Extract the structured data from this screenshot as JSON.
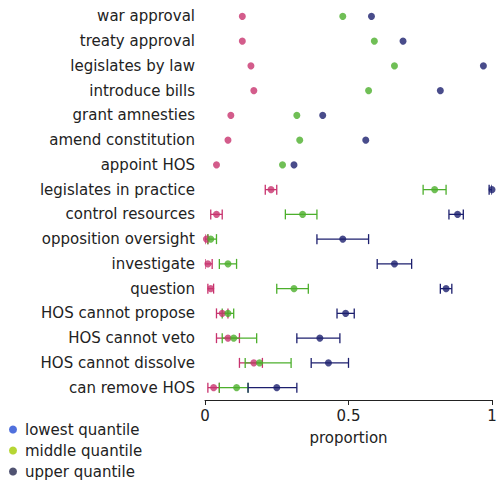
{
  "chart_data": {
    "type": "scatter",
    "orientation": "horizontal",
    "x_label": "proportion",
    "categories": [
      "war approval",
      "treaty approval",
      "legislates by law",
      "introduce bills",
      "grant amnesties",
      "amend constitution",
      "appoint HOS",
      "legislates in practice",
      "control resources",
      "opposition oversight",
      "investigate",
      "question",
      "HOS cannot propose",
      "HOS cannot veto",
      "HOS cannot dissolve",
      "can remove HOS"
    ],
    "xlim": [
      0,
      1
    ],
    "xticks": [
      0,
      0.5,
      1
    ],
    "grid": false,
    "legend": "bottom-left",
    "marker": "circle",
    "series": [
      {
        "name": "lowest quantile",
        "color": "#c8336e",
        "values": [
          0.13,
          0.13,
          0.16,
          0.17,
          0.09,
          0.08,
          0.04,
          0.23,
          0.04,
          0.005,
          0.01,
          0.02,
          0.06,
          0.08,
          0.17,
          0.03
        ],
        "lower": [
          null,
          null,
          null,
          null,
          null,
          null,
          null,
          0.21,
          0.02,
          0.0,
          0.0,
          0.01,
          0.04,
          0.04,
          0.12,
          0.01
        ],
        "upper": [
          null,
          null,
          null,
          null,
          null,
          null,
          null,
          0.25,
          0.06,
          0.01,
          0.025,
          0.03,
          0.08,
          0.12,
          0.2,
          0.05
        ]
      },
      {
        "name": "middle quantile",
        "color": "#4caf2c",
        "values": [
          0.48,
          0.59,
          0.66,
          0.57,
          0.32,
          0.33,
          0.27,
          0.8,
          0.34,
          0.02,
          0.08,
          0.31,
          0.08,
          0.1,
          0.19,
          0.11
        ],
        "lower": [
          null,
          null,
          null,
          null,
          null,
          null,
          null,
          0.76,
          0.28,
          0.01,
          0.05,
          0.25,
          0.06,
          0.06,
          0.14,
          0.05
        ],
        "upper": [
          null,
          null,
          null,
          null,
          null,
          null,
          null,
          0.84,
          0.39,
          0.04,
          0.11,
          0.36,
          0.1,
          0.18,
          0.3,
          0.15
        ]
      },
      {
        "name": "upper quantile",
        "color": "#1c1f6e",
        "values": [
          0.58,
          0.69,
          0.97,
          0.82,
          0.41,
          0.56,
          0.31,
          1.0,
          0.88,
          0.48,
          0.66,
          0.84,
          0.49,
          0.4,
          0.43,
          0.25
        ],
        "lower": [
          null,
          null,
          null,
          null,
          null,
          null,
          null,
          0.99,
          0.85,
          0.39,
          0.6,
          0.82,
          0.46,
          0.32,
          0.37,
          0.15
        ],
        "upper": [
          null,
          null,
          null,
          null,
          null,
          null,
          null,
          1.0,
          0.9,
          0.57,
          0.72,
          0.86,
          0.52,
          0.47,
          0.5,
          0.32
        ]
      }
    ]
  }
}
